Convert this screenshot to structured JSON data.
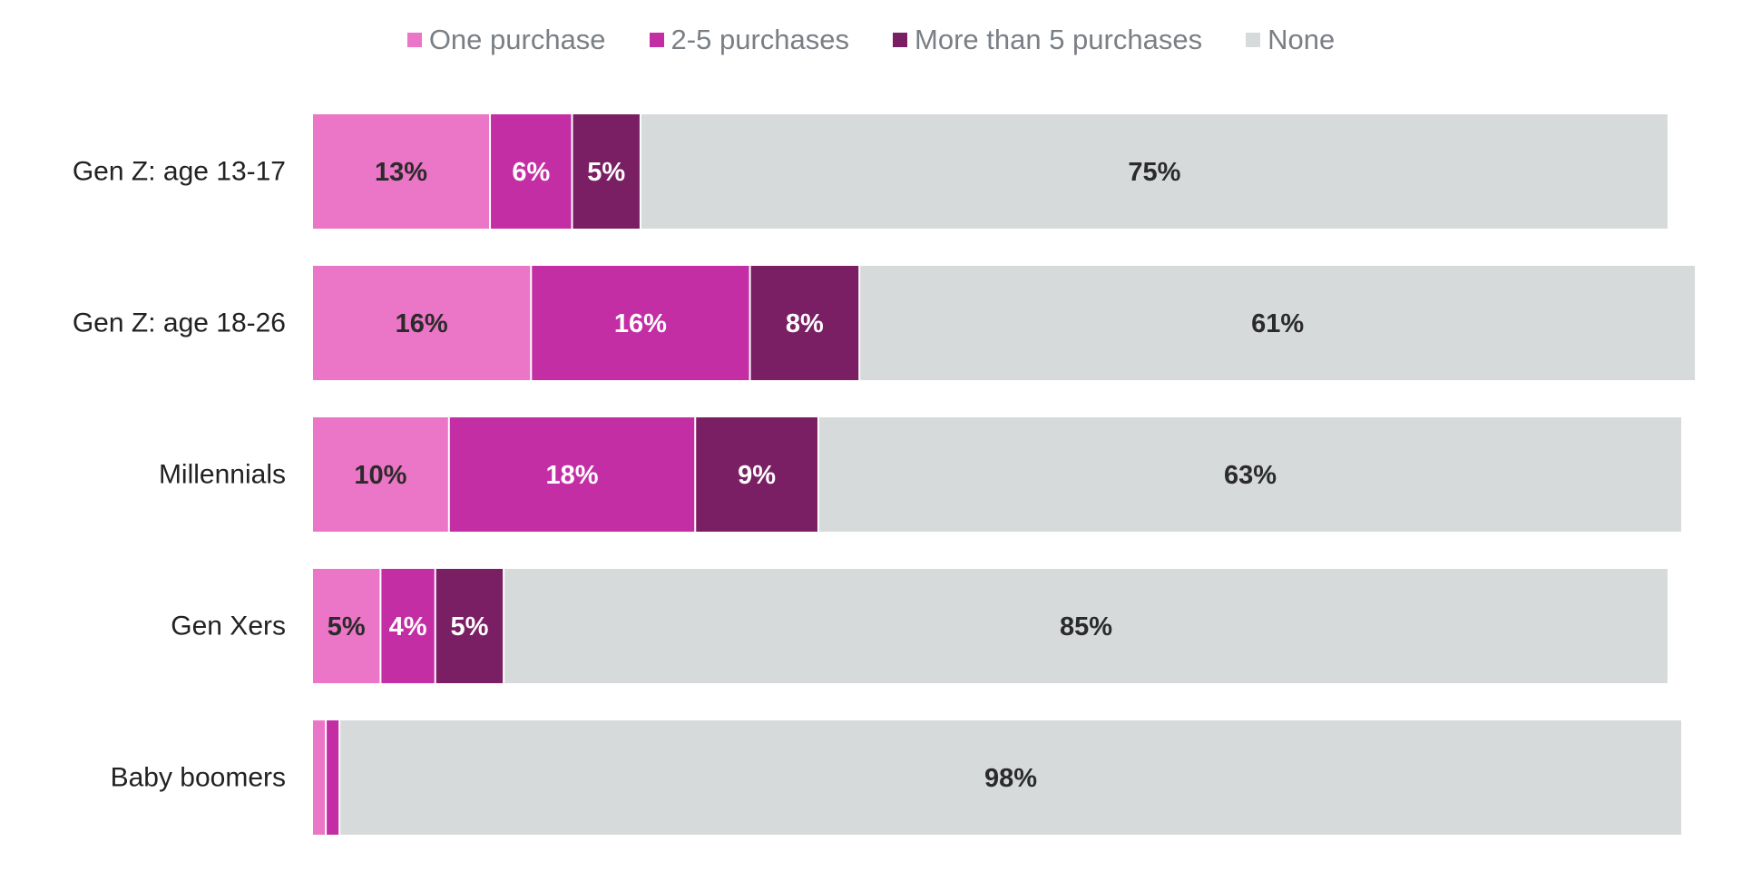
{
  "chart_data": {
    "type": "bar",
    "orientation": "horizontal",
    "stacked": true,
    "categories": [
      "Gen Z: age 13-17",
      "Gen Z: age 18-26",
      "Millennials",
      "Gen Xers",
      "Baby boomers"
    ],
    "series": [
      {
        "name": "One purchase",
        "color": "#eb75c6",
        "values": [
          13,
          16,
          10,
          5,
          1
        ],
        "labels": [
          "13%",
          "16%",
          "10%",
          "5%",
          ""
        ],
        "label_color": "#2b2b2b"
      },
      {
        "name": "2-5 purchases",
        "color": "#c42ea5",
        "values": [
          6,
          16,
          18,
          4,
          1
        ],
        "labels": [
          "6%",
          "16%",
          "18%",
          "4%",
          ""
        ],
        "label_color": "#ffffff"
      },
      {
        "name": "More than 5 purchases",
        "color": "#7a1f63",
        "values": [
          5,
          8,
          9,
          5,
          0
        ],
        "labels": [
          "5%",
          "8%",
          "9%",
          "5%",
          ""
        ],
        "label_color": "#ffffff"
      },
      {
        "name": "None",
        "color": "#d7dadb",
        "values": [
          75,
          61,
          63,
          85,
          98
        ],
        "labels": [
          "75%",
          "61%",
          "63%",
          "85%",
          "98%"
        ],
        "label_color": "#2b2b2b"
      }
    ],
    "xlim": [
      0,
      100
    ],
    "legend_position": "top-center",
    "grid": false,
    "title": "",
    "xlabel": "",
    "ylabel": ""
  }
}
